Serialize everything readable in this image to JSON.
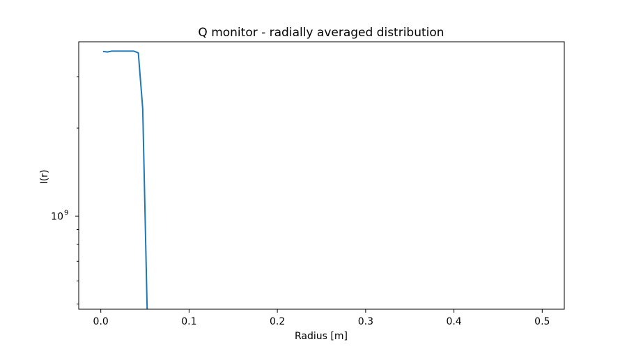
{
  "chart_data": {
    "type": "line",
    "title": "Q monitor - radially averaged distribution",
    "xlabel": "Radius [m]",
    "ylabel": "I(r)",
    "x_ticks": [
      {
        "value": 0.0,
        "label": "0.0"
      },
      {
        "value": 0.1,
        "label": "0.1"
      },
      {
        "value": 0.2,
        "label": "0.2"
      },
      {
        "value": 0.3,
        "label": "0.3"
      },
      {
        "value": 0.4,
        "label": "0.4"
      },
      {
        "value": 0.5,
        "label": "0.5"
      }
    ],
    "y_major_ticks": [
      {
        "value": 1000000000,
        "base": "10",
        "exponent": "9"
      }
    ],
    "y_minor_ticks": [
      500000000,
      600000000,
      700000000,
      800000000,
      900000000,
      2000000000,
      3000000000
    ],
    "xlim": [
      -0.025,
      0.525
    ],
    "ylim": [
      480000000,
      3950000000
    ],
    "y_scale": "log",
    "grid": false,
    "color": "#1f77b4",
    "series": [
      {
        "x": [
          0.0025,
          0.0075,
          0.0125,
          0.0175,
          0.0225,
          0.0275,
          0.0325,
          0.0375,
          0.0425,
          0.0475,
          0.0525
        ],
        "y": [
          3660000000,
          3645000000,
          3670000000,
          3670000000,
          3670000000,
          3670000000,
          3670000000,
          3670000000,
          3620000000,
          2330000000,
          480000000
        ]
      }
    ]
  }
}
